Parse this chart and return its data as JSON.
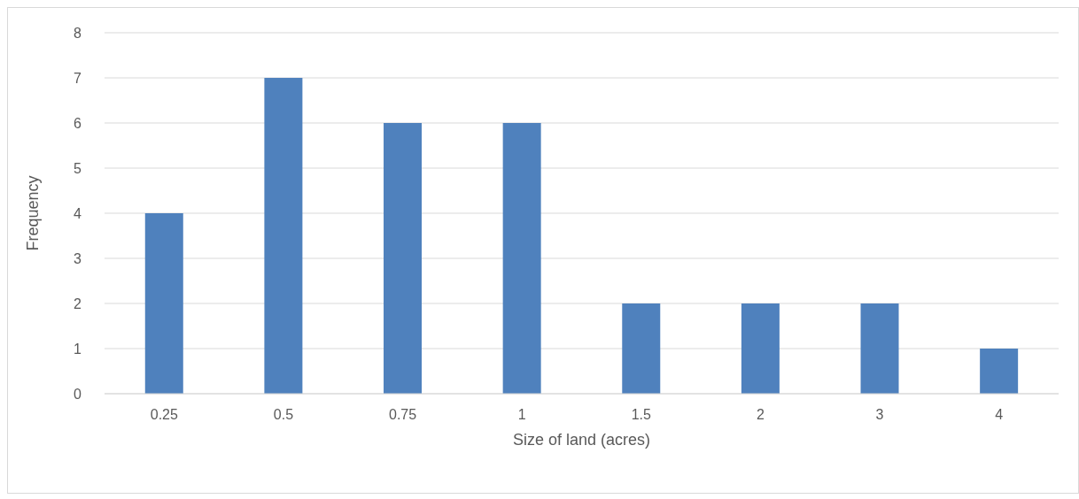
{
  "chart_data": {
    "type": "bar",
    "xlabel": "Size of land (acres)",
    "ylabel": "Frequency",
    "categories": [
      "0.25",
      "0.5",
      "0.75",
      "1",
      "1.5",
      "2",
      "3",
      "4"
    ],
    "values": [
      4,
      7,
      6,
      6,
      2,
      2,
      2,
      1
    ],
    "color": "#4f81bd",
    "ylim": [
      0,
      8
    ],
    "yticks": [
      0,
      1,
      2,
      3,
      4,
      5,
      6,
      7,
      8
    ],
    "grid": "y",
    "legend": false
  }
}
